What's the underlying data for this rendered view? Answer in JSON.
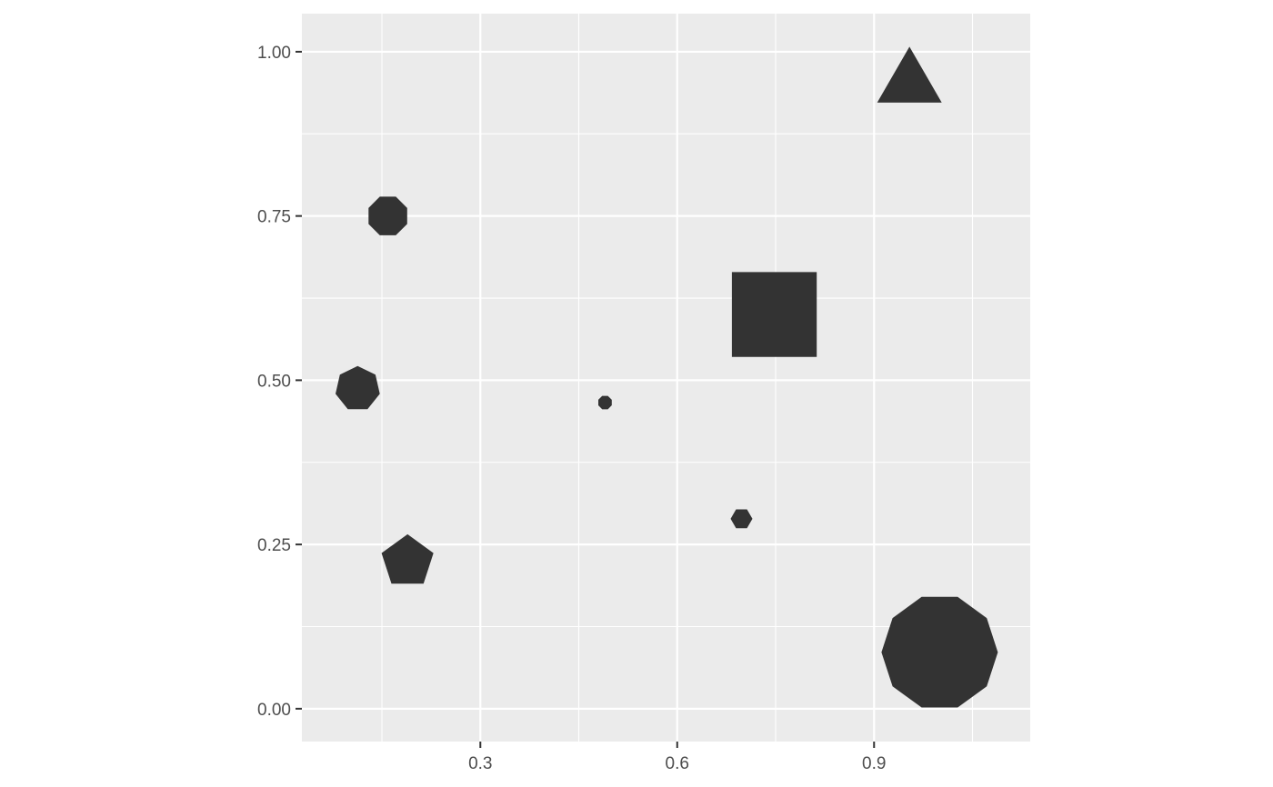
{
  "chart_data": {
    "type": "scatter",
    "x": [
      0.954,
      0.159,
      0.113,
      0.49,
      0.748,
      0.698,
      0.189,
      1.0
    ],
    "y": [
      0.951,
      0.75,
      0.487,
      0.466,
      0.6,
      0.289,
      0.224,
      0.086
    ],
    "sides": [
      3,
      8,
      7,
      8,
      4,
      6,
      5,
      10
    ],
    "size": [
      41,
      23,
      25,
      8,
      66,
      12,
      30,
      64
    ],
    "color": "#333333",
    "xlim": [
      0.028,
      1.138
    ],
    "ylim": [
      -0.05,
      1.058
    ],
    "xticks": [
      0.3,
      0.6,
      0.9
    ],
    "yticks": [
      {
        "value": 0,
        "label": "0.00"
      },
      {
        "value": 0.25,
        "label": "0.25"
      },
      {
        "value": 0.5,
        "label": "0.50"
      },
      {
        "value": 0.75,
        "label": "0.75"
      },
      {
        "value": 1,
        "label": "1.00"
      }
    ],
    "grid": true
  }
}
